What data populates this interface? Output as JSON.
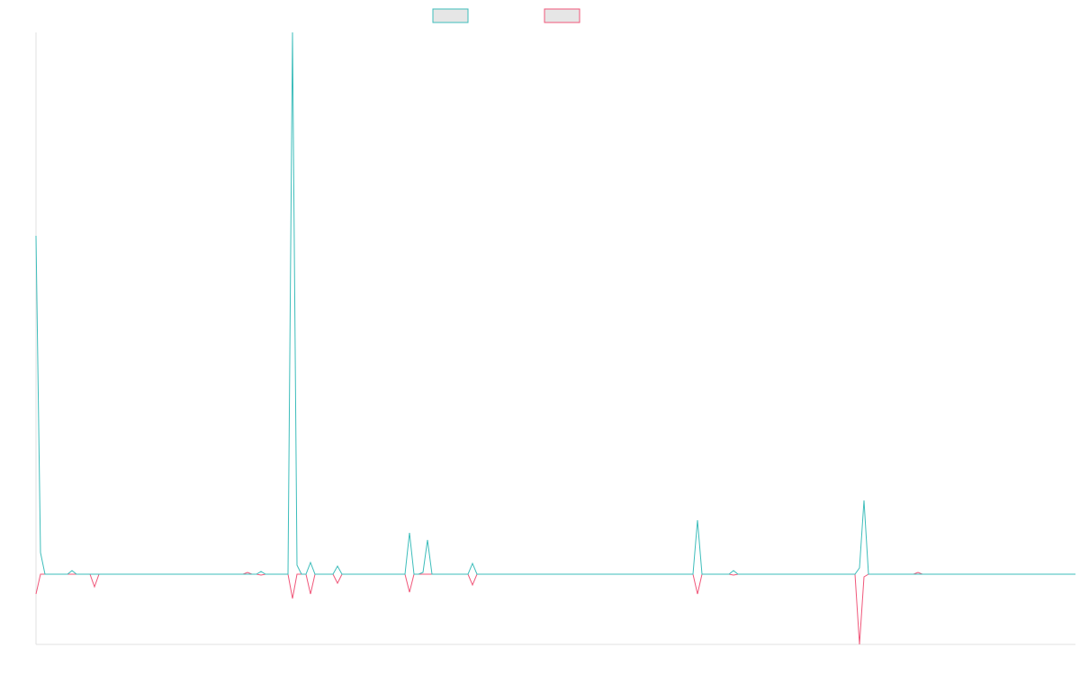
{
  "chart_data": {
    "type": "line",
    "categories": [
      null,
      null,
      null,
      null,
      null,
      null,
      null,
      null,
      null,
      null,
      null,
      null,
      null,
      null,
      null,
      null,
      null,
      null,
      null,
      null,
      null,
      null,
      null,
      null,
      null,
      null,
      null,
      null,
      null,
      null,
      null,
      null,
      null,
      null,
      null,
      null,
      null,
      null,
      null,
      null,
      null,
      null,
      null,
      null,
      null,
      null,
      null,
      null,
      null,
      null,
      null,
      null,
      null,
      null,
      null,
      null,
      null,
      null,
      null,
      null,
      null,
      null,
      null,
      null,
      null,
      null,
      null,
      null,
      null,
      null,
      null,
      null,
      null,
      null,
      null,
      null,
      null,
      null,
      null,
      null,
      null,
      null,
      null,
      null,
      null,
      null,
      null,
      null,
      null,
      null,
      null,
      null,
      null,
      null,
      null,
      null,
      null,
      null,
      null,
      null,
      null,
      null,
      null,
      null,
      null,
      null,
      null,
      null,
      null,
      null,
      null,
      null,
      null,
      null,
      null,
      null,
      null,
      null,
      null,
      null,
      null,
      null,
      null,
      null,
      null,
      null,
      null,
      null,
      null,
      null,
      null,
      null,
      null,
      null,
      null,
      null,
      null,
      null,
      null,
      null,
      null,
      null,
      null,
      null,
      null,
      null,
      null,
      null,
      null,
      null,
      null,
      null,
      null,
      null,
      null,
      null,
      null,
      null,
      null,
      null,
      null,
      null,
      null,
      null,
      null,
      null,
      null,
      null,
      null,
      null,
      null,
      null,
      null,
      null,
      null,
      null,
      null,
      null,
      null,
      null,
      null,
      null,
      null,
      null,
      null,
      null,
      null,
      null,
      null,
      null,
      null,
      null,
      null,
      null,
      null,
      null,
      null,
      null,
      null,
      null,
      null,
      null,
      null,
      null,
      null,
      null,
      null,
      null,
      null,
      null,
      null,
      null,
      null,
      null,
      null,
      null,
      null,
      null,
      null,
      null,
      null,
      null,
      null,
      null,
      null,
      null,
      null,
      null,
      null,
      null,
      null,
      null
    ],
    "series": [
      {
        "color": "#3dbdbb",
        "values": [
          376,
          24,
          0,
          0,
          0,
          0,
          0,
          0,
          4,
          0,
          0,
          0,
          0,
          0,
          0,
          0,
          0,
          0,
          0,
          0,
          0,
          0,
          0,
          0,
          0,
          0,
          0,
          0,
          0,
          0,
          0,
          0,
          0,
          0,
          0,
          0,
          0,
          0,
          0,
          0,
          0,
          0,
          0,
          0,
          0,
          0,
          0,
          0,
          0,
          0,
          3,
          0,
          0,
          0,
          0,
          0,
          0,
          602,
          10,
          0,
          0,
          13,
          0,
          0,
          0,
          0,
          0,
          9,
          0,
          0,
          0,
          0,
          0,
          0,
          0,
          0,
          0,
          0,
          0,
          0,
          0,
          0,
          0,
          46,
          0,
          0,
          2,
          38,
          0,
          0,
          0,
          0,
          0,
          0,
          0,
          0,
          0,
          12,
          0,
          0,
          0,
          0,
          0,
          0,
          0,
          0,
          0,
          0,
          0,
          0,
          0,
          0,
          0,
          0,
          0,
          0,
          0,
          0,
          0,
          0,
          0,
          0,
          0,
          0,
          0,
          0,
          0,
          0,
          0,
          0,
          0,
          0,
          0,
          0,
          0,
          0,
          0,
          0,
          0,
          0,
          0,
          0,
          0,
          0,
          0,
          0,
          0,
          60,
          0,
          0,
          0,
          0,
          0,
          0,
          0,
          4,
          0,
          0,
          0,
          0,
          0,
          0,
          0,
          0,
          0,
          0,
          0,
          0,
          0,
          0,
          0,
          0,
          0,
          0,
          0,
          0,
          0,
          0,
          0,
          0,
          0,
          0,
          0,
          7,
          82,
          0,
          0,
          0,
          0,
          0,
          0,
          0,
          0,
          0,
          0,
          0,
          0,
          0,
          0,
          0,
          0,
          0,
          0,
          0,
          0,
          0,
          0,
          0,
          0,
          0,
          0,
          0,
          0,
          0,
          0,
          0,
          0,
          0,
          0,
          0,
          0,
          0,
          0,
          0,
          0,
          0,
          0,
          0,
          0,
          0,
          0,
          0
        ]
      },
      {
        "color": "#f0577a",
        "values": [
          -22,
          0,
          0,
          0,
          0,
          0,
          0,
          0,
          0,
          0,
          0,
          0,
          0,
          -14,
          0,
          0,
          0,
          0,
          0,
          0,
          0,
          0,
          0,
          0,
          0,
          0,
          0,
          0,
          0,
          0,
          0,
          0,
          0,
          0,
          0,
          0,
          0,
          0,
          0,
          0,
          0,
          0,
          0,
          0,
          0,
          0,
          0,
          2,
          0,
          0,
          -1,
          0,
          0,
          0,
          0,
          0,
          0,
          -27,
          0,
          0,
          0,
          -22,
          0,
          0,
          0,
          0,
          0,
          -10,
          0,
          0,
          0,
          0,
          0,
          0,
          0,
          0,
          0,
          0,
          0,
          0,
          0,
          0,
          0,
          -20,
          0,
          0,
          0,
          0,
          0,
          0,
          0,
          0,
          0,
          0,
          0,
          0,
          0,
          -12,
          0,
          0,
          0,
          0,
          0,
          0,
          0,
          0,
          0,
          0,
          0,
          0,
          0,
          0,
          0,
          0,
          0,
          0,
          0,
          0,
          0,
          0,
          0,
          0,
          0,
          0,
          0,
          0,
          0,
          0,
          0,
          0,
          0,
          0,
          0,
          0,
          0,
          0,
          0,
          0,
          0,
          0,
          0,
          0,
          0,
          0,
          0,
          0,
          0,
          -22,
          0,
          0,
          0,
          0,
          0,
          0,
          0,
          -1,
          0,
          0,
          0,
          0,
          0,
          0,
          0,
          0,
          0,
          0,
          0,
          0,
          0,
          0,
          0,
          0,
          0,
          0,
          0,
          0,
          0,
          0,
          0,
          0,
          0,
          0,
          0,
          -78,
          -3,
          0,
          0,
          0,
          0,
          0,
          0,
          0,
          0,
          0,
          0,
          0,
          2,
          0,
          0,
          0,
          0,
          0,
          0,
          0,
          0,
          0,
          0,
          0,
          0,
          0,
          0,
          0,
          0,
          0,
          0,
          0,
          0,
          0,
          0,
          0,
          0,
          0,
          0,
          0,
          0,
          0,
          0,
          0,
          0,
          0,
          0,
          0
        ]
      }
    ],
    "ylim": [
      -78,
      602
    ]
  }
}
